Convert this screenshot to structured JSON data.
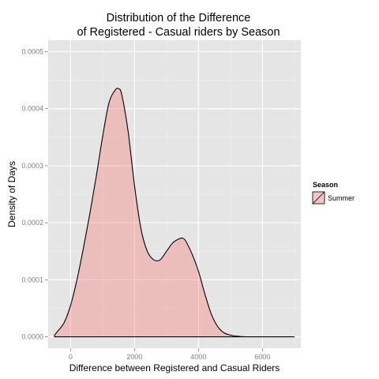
{
  "chart_data": {
    "type": "area",
    "title_line1": "Distribution of the Difference",
    "title_line2": "of Registered - Casual riders by Season",
    "xlabel": "Difference between Registered and Casual Riders",
    "ylabel": "Density of Days",
    "xlim": [
      -700,
      7200
    ],
    "ylim": [
      -2e-05,
      0.00052
    ],
    "x_ticks": [
      0,
      2000,
      4000,
      6000
    ],
    "x_tick_labels": [
      "0",
      "2000",
      "4000",
      "6000"
    ],
    "y_ticks": [
      0,
      0.0001,
      0.0002,
      0.0003,
      0.0004,
      0.0005
    ],
    "y_tick_labels": [
      "0.0000",
      "0.0001",
      "0.0002",
      "0.0003",
      "0.0004",
      "0.0005"
    ],
    "grid": true,
    "legend": {
      "title": "Season",
      "position": "right"
    },
    "series": [
      {
        "name": "Summer",
        "fill": "#f8766d",
        "fill_opacity": 0.35,
        "stroke": "#000000",
        "x": [
          -500,
          -400,
          -200,
          0,
          200,
          400,
          600,
          800,
          1000,
          1200,
          1400,
          1500,
          1600,
          1800,
          2000,
          2200,
          2400,
          2600,
          2800,
          3000,
          3200,
          3400,
          3500,
          3600,
          3800,
          4000,
          4200,
          4400,
          4600,
          4800,
          5000,
          5200,
          5500,
          6000,
          6500,
          7000
        ],
        "y": [
          3e-06,
          1e-05,
          2.5e-05,
          5.5e-05,
          0.0001,
          0.000155,
          0.000215,
          0.00028,
          0.00035,
          0.00041,
          0.000433,
          0.000435,
          0.000425,
          0.00036,
          0.000265,
          0.00019,
          0.00015,
          0.000135,
          0.000135,
          0.00015,
          0.000165,
          0.000172,
          0.000173,
          0.000168,
          0.000145,
          0.000115,
          7.5e-05,
          4e-05,
          1.8e-05,
          7e-06,
          3e-06,
          1e-06,
          0.0,
          0.0,
          0.0,
          0.0
        ]
      }
    ]
  }
}
